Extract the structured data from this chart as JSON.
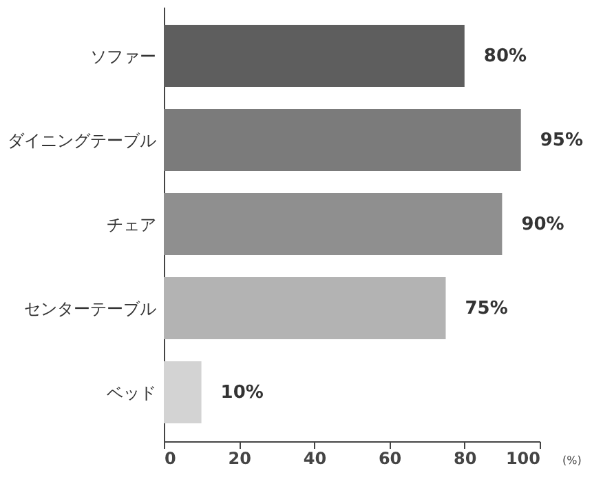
{
  "chart_data": {
    "type": "bar",
    "orientation": "horizontal",
    "categories": [
      "ソファー",
      "ダイニングテーブル",
      "チェア",
      "センターテーブル",
      "ベッド"
    ],
    "values": [
      80,
      95,
      90,
      75,
      10
    ],
    "colors": [
      "#5e5e5e",
      "#7b7b7b",
      "#8f8f8f",
      "#b3b3b3",
      "#d3d3d3"
    ],
    "value_labels": [
      "80%",
      "95%",
      "90%",
      "75%",
      "10%"
    ],
    "xlim": [
      0,
      100
    ],
    "xticks": [
      0,
      20,
      40,
      60,
      80,
      100
    ],
    "xlabel": "(%)",
    "grid": false
  }
}
